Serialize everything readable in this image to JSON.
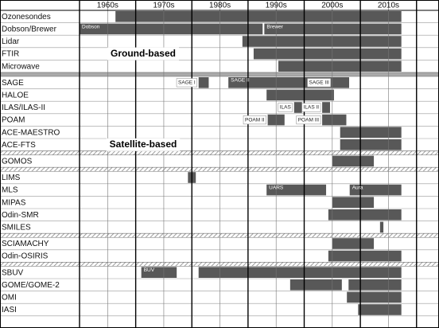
{
  "chart_data": {
    "type": "gantt",
    "color": "#585858",
    "xlim": [
      1960,
      2024
    ],
    "xticks": [
      {
        "value": 1965,
        "label": "1960s"
      },
      {
        "value": 1975,
        "label": "1970s"
      },
      {
        "value": 1985,
        "label": "1980s"
      },
      {
        "value": 1995,
        "label": "1990s"
      },
      {
        "value": 2005,
        "label": "2000s"
      },
      {
        "value": 2015,
        "label": "2010s"
      }
    ],
    "xgrid": [
      1965,
      1970,
      1975,
      1980,
      1985,
      1990,
      1995,
      2000,
      2005,
      2010,
      2015,
      2020
    ],
    "annotations": [
      "Ground-based",
      "Satellite-based"
    ],
    "groups": [
      [
        {
          "label": "Ozonesondes",
          "bars": [
            {
              "start": 1966.4,
              "end": 2017.3
            }
          ]
        },
        {
          "label": "Dobson/Brewer",
          "bars": [
            {
              "start": 1960,
              "end": 1992.6,
              "label": "Dobson"
            },
            {
              "start": 1992.9,
              "end": 2017.3,
              "label": "Brewer"
            }
          ]
        },
        {
          "label": "Lidar",
          "bars": [
            {
              "start": 1989,
              "end": 2017.3
            }
          ]
        },
        {
          "label": "FTIR",
          "bars": [
            {
              "start": 1991,
              "end": 2017.3
            }
          ]
        },
        {
          "label": "Microwave",
          "bars": [
            {
              "start": 1995.4,
              "end": 2017.3
            }
          ]
        }
      ],
      [
        {
          "label": "SAGE",
          "bars": [
            {
              "start": 1981.2,
              "end": 1983,
              "label": "SAGE I"
            },
            {
              "start": 1986.5,
              "end": 2005,
              "label": "SAGE II"
            },
            {
              "start": 2005,
              "end": 2008,
              "label": "SAGE III"
            }
          ]
        },
        {
          "label": "HALOE",
          "bars": [
            {
              "start": 1993.3,
              "end": 2005.3
            }
          ]
        },
        {
          "label": "ILAS/ILAS-II",
          "bars": [
            {
              "start": 1998.2,
              "end": 1999.6,
              "label": "ILAS"
            },
            {
              "start": 2003.2,
              "end": 2004.6,
              "label": "ILAS II"
            }
          ]
        },
        {
          "label": "POAM",
          "bars": [
            {
              "start": 1993.5,
              "end": 1996.5,
              "label": "POAM II"
            },
            {
              "start": 2003.2,
              "end": 2007.5,
              "label": "POAM III"
            }
          ]
        },
        {
          "label": "ACE-MAESTRO",
          "bars": [
            {
              "start": 2006.4,
              "end": 2017.3
            }
          ]
        },
        {
          "label": "ACE-FTS",
          "bars": [
            {
              "start": 2006.4,
              "end": 2017.3
            }
          ]
        }
      ],
      [
        {
          "label": "GOMOS",
          "bars": [
            {
              "start": 2005,
              "end": 2012.4
            }
          ]
        }
      ],
      [
        {
          "label": "LIMS",
          "bars": [
            {
              "start": 1979.3,
              "end": 1980.7
            }
          ]
        },
        {
          "label": "MLS",
          "bars": [
            {
              "start": 1993.3,
              "end": 2003.9,
              "label": "UARS"
            },
            {
              "start": 2008.1,
              "end": 2017.3,
              "label": "Aura"
            }
          ]
        },
        {
          "label": "MIPAS",
          "bars": [
            {
              "start": 2005,
              "end": 2012.4
            }
          ]
        },
        {
          "label": "Odin-SMR",
          "bars": [
            {
              "start": 2004.3,
              "end": 2017.3
            }
          ]
        },
        {
          "label": "SMILES",
          "bars": [
            {
              "start": 2013.5,
              "end": 2014.1
            }
          ]
        }
      ],
      [
        {
          "label": "SCIAMACHY",
          "bars": [
            {
              "start": 2005,
              "end": 2012.4
            }
          ]
        },
        {
          "label": "Odin-OSIRIS",
          "bars": [
            {
              "start": 2004.3,
              "end": 2017.3
            }
          ]
        }
      ],
      [
        {
          "label": "SBUV",
          "bars": [
            {
              "start": 1971,
              "end": 1977.3,
              "label": "BUV"
            },
            {
              "start": 1981.2,
              "end": 2017.3
            }
          ]
        },
        {
          "label": "GOME/GOME-2",
          "bars": [
            {
              "start": 1997.5,
              "end": 2006.7
            },
            {
              "start": 2007.9,
              "end": 2017.3
            }
          ]
        },
        {
          "label": "OMI",
          "bars": [
            {
              "start": 2007.6,
              "end": 2017.3
            }
          ]
        },
        {
          "label": "IASI",
          "bars": [
            {
              "start": 2009.6,
              "end": 2017.3
            }
          ]
        }
      ]
    ]
  }
}
